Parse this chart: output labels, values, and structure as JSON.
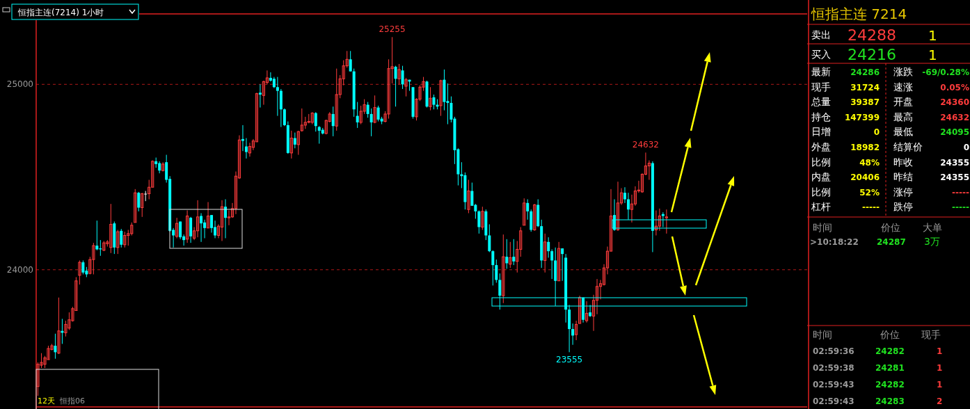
{
  "chart_data": [
    {
      "type": "candlestick",
      "title": "恒指主连(7214) 1小时",
      "categories": [
        null,
        null,
        null,
        null,
        null,
        null,
        null,
        null,
        null,
        null,
        null,
        null,
        null,
        null,
        null,
        null,
        null,
        null,
        null,
        null,
        null,
        null,
        null,
        null,
        null,
        null,
        null,
        null,
        null,
        null,
        null,
        null,
        null,
        null,
        null,
        null,
        null,
        null,
        null,
        null,
        null,
        null,
        null,
        null,
        null,
        null,
        null,
        null,
        null,
        null,
        null,
        null,
        null,
        null,
        null,
        null,
        null,
        null,
        null,
        null,
        null,
        null,
        null,
        null,
        null,
        null,
        null,
        null,
        null,
        null,
        null,
        null,
        null,
        null,
        null,
        null,
        null,
        null,
        null,
        null,
        null,
        null,
        null,
        null,
        null,
        null,
        null,
        null,
        null,
        null,
        null,
        null,
        null,
        null,
        null,
        null,
        null,
        null,
        null,
        null,
        null,
        null,
        null,
        null,
        null,
        null,
        null,
        null,
        null,
        null,
        null,
        null,
        null,
        null,
        null,
        null,
        null,
        null,
        null,
        null,
        null,
        null,
        null,
        null,
        null,
        null,
        null,
        null,
        null,
        null,
        null,
        null,
        null,
        null,
        null,
        null,
        null,
        null,
        null,
        null,
        null,
        null,
        null,
        null,
        null,
        null,
        null,
        null,
        null,
        null,
        null,
        null,
        null,
        null,
        null,
        null,
        null,
        null,
        null,
        null,
        null,
        null,
        null,
        null,
        null,
        null,
        null,
        null,
        null,
        null,
        null,
        null,
        null,
        null,
        null,
        null,
        null,
        null,
        null,
        null,
        null,
        null,
        null,
        null,
        null,
        null,
        null,
        null,
        null,
        null,
        null,
        null,
        null,
        null,
        null,
        null,
        null,
        null,
        null,
        null,
        null,
        null,
        null,
        null,
        null,
        null,
        null,
        null,
        null,
        null,
        null,
        null,
        null,
        null,
        null,
        null,
        null,
        null,
        null,
        null,
        null,
        null
      ],
      "ohlc": [
        [
          23370,
          23500,
          23320,
          23490
        ],
        [
          23485,
          23550,
          23470,
          23500
        ],
        [
          23490,
          23535,
          23470,
          23525
        ],
        [
          23515,
          23590,
          23515,
          23575
        ],
        [
          23570,
          23600,
          23565,
          23590
        ],
        [
          23590,
          23655,
          23520,
          23555
        ],
        [
          23550,
          23850,
          23545,
          23670
        ],
        [
          23670,
          23735,
          23600,
          23660
        ],
        [
          23660,
          23725,
          23640,
          23705
        ],
        [
          23685,
          23770,
          23675,
          23730
        ],
        [
          23725,
          23800,
          23720,
          23790
        ],
        [
          23780,
          23960,
          23780,
          23940
        ],
        [
          23970,
          24050,
          23920,
          24040
        ],
        [
          24040,
          24050,
          23975,
          23985
        ],
        [
          23995,
          24015,
          23960,
          23975
        ],
        [
          23980,
          24070,
          23975,
          24055
        ],
        [
          24055,
          24145,
          23975,
          24130
        ],
        [
          24130,
          24265,
          24105,
          24110
        ],
        [
          24115,
          24160,
          24075,
          24110
        ],
        [
          24105,
          24155,
          24100,
          24145
        ],
        [
          24140,
          24160,
          24125,
          24150
        ],
        [
          24120,
          24355,
          24090,
          24245
        ],
        [
          24250,
          24260,
          24085,
          24120
        ],
        [
          24120,
          24215,
          24085,
          24205
        ],
        [
          24210,
          24220,
          24120,
          24135
        ],
        [
          24135,
          24205,
          24120,
          24185
        ],
        [
          24185,
          24215,
          24130,
          24195
        ],
        [
          24195,
          24255,
          24185,
          24240
        ],
        [
          24255,
          24435,
          24255,
          24415
        ],
        [
          24415,
          24420,
          24315,
          24335
        ],
        [
          24335,
          24415,
          24285,
          24410
        ],
        [
          24410,
          24425,
          24370,
          24410
        ],
        [
          24410,
          24485,
          24380,
          24445
        ],
        [
          24445,
          24590,
          24445,
          24585
        ],
        [
          24585,
          24605,
          24550,
          24570
        ],
        [
          24575,
          24585,
          24520,
          24535
        ],
        [
          24535,
          24580,
          24530,
          24570
        ],
        [
          24580,
          24620,
          24470,
          24485
        ],
        [
          24490,
          24505,
          24205,
          24210
        ],
        [
          24215,
          24225,
          24120,
          24185
        ],
        [
          24180,
          24280,
          24170,
          24250
        ],
        [
          24260,
          24260,
          24165,
          24175
        ],
        [
          24180,
          24190,
          24130,
          24160
        ],
        [
          24165,
          24320,
          24145,
          24290
        ],
        [
          24280,
          24285,
          24145,
          24180
        ],
        [
          24170,
          24230,
          24160,
          24210
        ],
        [
          24210,
          24375,
          24175,
          24285
        ],
        [
          24290,
          24305,
          24150,
          24250
        ],
        [
          24255,
          24270,
          24170,
          24225
        ],
        [
          24225,
          24365,
          24225,
          24290
        ],
        [
          24295,
          24295,
          24200,
          24225
        ],
        [
          24230,
          24265,
          24170,
          24185
        ],
        [
          24185,
          24245,
          24170,
          24235
        ],
        [
          24230,
          24375,
          24155,
          24340
        ],
        [
          24340,
          24380,
          24170,
          24280
        ],
        [
          24280,
          24320,
          24240,
          24285
        ],
        [
          24285,
          24360,
          24280,
          24330
        ],
        [
          24330,
          24530,
          24300,
          24505
        ],
        [
          24495,
          24725,
          24490,
          24700
        ],
        [
          24705,
          24780,
          24640,
          24695
        ],
        [
          24665,
          24710,
          24600,
          24635
        ],
        [
          24630,
          24685,
          24610,
          24665
        ],
        [
          24660,
          24705,
          24645,
          24695
        ],
        [
          24690,
          24955,
          24690,
          24950
        ],
        [
          24955,
          25000,
          24875,
          24945
        ],
        [
          24940,
          25020,
          24890,
          25015
        ],
        [
          25010,
          25075,
          25000,
          25035
        ],
        [
          25035,
          25065,
          25015,
          25020
        ],
        [
          25030,
          25040,
          24980,
          24985
        ],
        [
          24985,
          25040,
          24830,
          24965
        ],
        [
          24965,
          24975,
          24770,
          24865
        ],
        [
          24865,
          24870,
          24775,
          24780
        ],
        [
          24780,
          24800,
          24625,
          24630
        ],
        [
          24630,
          24750,
          24600,
          24710
        ],
        [
          24710,
          24740,
          24655,
          24675
        ],
        [
          24675,
          24750,
          24620,
          24745
        ],
        [
          24750,
          24870,
          24745,
          24780
        ],
        [
          24780,
          24825,
          24760,
          24795
        ],
        [
          24795,
          24840,
          24790,
          24800
        ],
        [
          24795,
          24850,
          24785,
          24845
        ],
        [
          24845,
          24850,
          24745,
          24775
        ],
        [
          24770,
          24775,
          24680,
          24750
        ],
        [
          24755,
          24765,
          24730,
          24735
        ],
        [
          24735,
          24810,
          24730,
          24805
        ],
        [
          24800,
          24850,
          24795,
          24840
        ],
        [
          24840,
          24880,
          24720,
          24775
        ],
        [
          24775,
          25085,
          24750,
          24945
        ],
        [
          24945,
          25050,
          24925,
          25030
        ],
        [
          25030,
          25130,
          24995,
          25100
        ],
        [
          25100,
          25180,
          25090,
          25135
        ],
        [
          25135,
          25180,
          25070,
          25070
        ],
        [
          25070,
          25085,
          24825,
          24865
        ],
        [
          24830,
          24905,
          24765,
          24795
        ],
        [
          24795,
          24885,
          24785,
          24855
        ],
        [
          24855,
          24920,
          24840,
          24890
        ],
        [
          24890,
          24905,
          24820,
          24840
        ],
        [
          24840,
          24870,
          24720,
          24795
        ],
        [
          24795,
          24940,
          24790,
          24875
        ],
        [
          24875,
          24885,
          24800,
          24810
        ],
        [
          24815,
          24825,
          24785,
          24800
        ],
        [
          24800,
          24855,
          24795,
          24840
        ],
        [
          24840,
          25135,
          24815,
          25085
        ],
        [
          25085,
          25255,
          25005,
          25095
        ],
        [
          25095,
          25100,
          24880,
          25030
        ],
        [
          25030,
          25110,
          25000,
          25080
        ],
        [
          25075,
          25100,
          24975,
          25000
        ],
        [
          24990,
          25035,
          24935,
          25025
        ],
        [
          25025,
          25025,
          24965,
          25015
        ],
        [
          24985,
          24985,
          24815,
          24825
        ],
        [
          24825,
          24925,
          24805,
          24920
        ],
        [
          24920,
          24995,
          24910,
          24985
        ],
        [
          24985,
          25040,
          24965,
          25015
        ],
        [
          25015,
          25020,
          24875,
          24880
        ],
        [
          24880,
          24985,
          24860,
          24925
        ],
        [
          24930,
          24945,
          24865,
          24890
        ],
        [
          24890,
          24920,
          24865,
          24880
        ],
        [
          24885,
          25025,
          24830,
          25020
        ],
        [
          25025,
          25080,
          24860,
          24905
        ],
        [
          24910,
          25005,
          24785,
          24900
        ],
        [
          24900,
          24935,
          24795,
          24810
        ],
        [
          24815,
          24825,
          24570,
          24645
        ],
        [
          24650,
          24655,
          24455,
          24515
        ],
        [
          24515,
          24580,
          24440,
          24505
        ],
        [
          24510,
          24525,
          24325,
          24365
        ],
        [
          24325,
          24485,
          24305,
          24425
        ],
        [
          24425,
          24470,
          24345,
          24345
        ],
        [
          24350,
          24355,
          24275,
          24315
        ],
        [
          24315,
          24320,
          24195,
          24230
        ],
        [
          24230,
          24340,
          24215,
          24315
        ],
        [
          24315,
          24325,
          24160,
          24185
        ],
        [
          24185,
          24245,
          24095,
          24100
        ],
        [
          24100,
          24105,
          23915,
          24025
        ],
        [
          24025,
          24055,
          23930,
          23945
        ],
        [
          23945,
          23980,
          23785,
          23860
        ],
        [
          23860,
          24190,
          23820,
          24070
        ],
        [
          24070,
          24165,
          24005,
          24035
        ],
        [
          24030,
          24150,
          24010,
          24065
        ],
        [
          24070,
          24165,
          24025,
          24045
        ],
        [
          24045,
          24155,
          23985,
          24110
        ],
        [
          24110,
          24230,
          24070,
          24210
        ],
        [
          24240,
          24385,
          24240,
          24360
        ],
        [
          24360,
          24380,
          24270,
          24315
        ],
        [
          24315,
          24325,
          24205,
          24215
        ],
        [
          24215,
          24355,
          24210,
          24350
        ],
        [
          24350,
          24380,
          24230,
          24235
        ],
        [
          24235,
          24270,
          24010,
          24050
        ],
        [
          24050,
          24195,
          23985,
          24150
        ],
        [
          24150,
          24175,
          24065,
          24100
        ],
        [
          24100,
          24110,
          23950,
          24050
        ],
        [
          24050,
          24120,
          23805,
          23940
        ],
        [
          23940,
          24150,
          23940,
          24115
        ],
        [
          24115,
          24115,
          23940,
          24085
        ],
        [
          24065,
          24085,
          23715,
          23785
        ],
        [
          23785,
          23810,
          23555,
          23680
        ],
        [
          23680,
          23710,
          23595,
          23645
        ],
        [
          23650,
          23725,
          23620,
          23705
        ],
        [
          23710,
          23860,
          23710,
          23850
        ],
        [
          23850,
          23850,
          23715,
          23730
        ],
        [
          23725,
          23830,
          23715,
          23765
        ],
        [
          23770,
          23810,
          23745,
          23750
        ],
        [
          23750,
          23865,
          23670,
          23835
        ],
        [
          23835,
          23950,
          23760,
          23910
        ],
        [
          23910,
          23945,
          23840,
          23925
        ],
        [
          23920,
          24030,
          23915,
          24010
        ],
        [
          24010,
          24125,
          23975,
          24100
        ],
        [
          24100,
          24435,
          24100,
          24290
        ],
        [
          24295,
          24380,
          24210,
          24215
        ],
        [
          24215,
          24475,
          24210,
          24360
        ],
        [
          24360,
          24440,
          24350,
          24415
        ],
        [
          24415,
          24445,
          24360,
          24380
        ],
        [
          24380,
          24415,
          24270,
          24325
        ],
        [
          24325,
          24405,
          24255,
          24355
        ],
        [
          24355,
          24450,
          24345,
          24425
        ],
        [
          24425,
          24480,
          24415,
          24430
        ],
        [
          24420,
          24520,
          24415,
          24515
        ],
        [
          24515,
          24632,
          24510,
          24560
        ],
        [
          24560,
          24590,
          24485,
          24575
        ],
        [
          24575,
          24585,
          24095,
          24210
        ],
        [
          24215,
          24320,
          24185,
          24235
        ],
        [
          24235,
          24330,
          24210,
          24290
        ],
        [
          24300,
          24310,
          24230,
          24290
        ],
        [
          24280,
          24325,
          24195,
          24285
        ],
        null,
        null,
        null,
        null,
        null,
        null,
        null,
        null,
        null,
        null,
        null,
        null,
        null,
        null,
        null,
        null,
        null,
        null,
        null,
        null,
        null,
        null,
        null,
        null,
        null,
        null,
        null,
        null,
        null,
        null,
        null,
        null,
        null,
        null,
        null,
        null,
        null,
        null,
        null,
        null
      ],
      "ylim": [
        23260,
        25380
      ],
      "yticks": [
        24000,
        25000
      ],
      "grid": "y",
      "tick_labels": "y",
      "annotations": [
        "25255",
        "24632",
        "23555",
        "12天",
        "恒指06"
      ]
    },
    {
      "type": "other",
      "annotations": [
        "恒指主连 7214",
        "卖出",
        "24288",
        "1",
        "买入",
        "24216",
        "1",
        "最新",
        "24286",
        "涨跌",
        "-69/0.28%",
        "现手",
        "31724",
        "速涨",
        "0.05%",
        "总量",
        "39387",
        "开盘",
        "24360",
        "持仓",
        "147399",
        "最高",
        "24632",
        "日增",
        "0",
        "最低",
        "24095",
        "外盘",
        "18982",
        "结算价",
        "0",
        "比例",
        "48%",
        "昨收",
        "24355",
        "内盘",
        "20406",
        "昨结",
        "24355",
        "比例",
        "52%",
        "涨停",
        "-----",
        "杠杆",
        "-----",
        "跌停",
        "-----",
        "时间",
        "价位",
        "大单",
        ">10:18:22",
        "24287",
        "3万",
        "时间",
        "价位",
        "现手",
        "02:59:36",
        "24282",
        "1",
        "02:59:38",
        "24281",
        "1",
        "02:59:43",
        "24282",
        "1",
        "02:59:43",
        "24283",
        "2"
      ]
    }
  ]
}
